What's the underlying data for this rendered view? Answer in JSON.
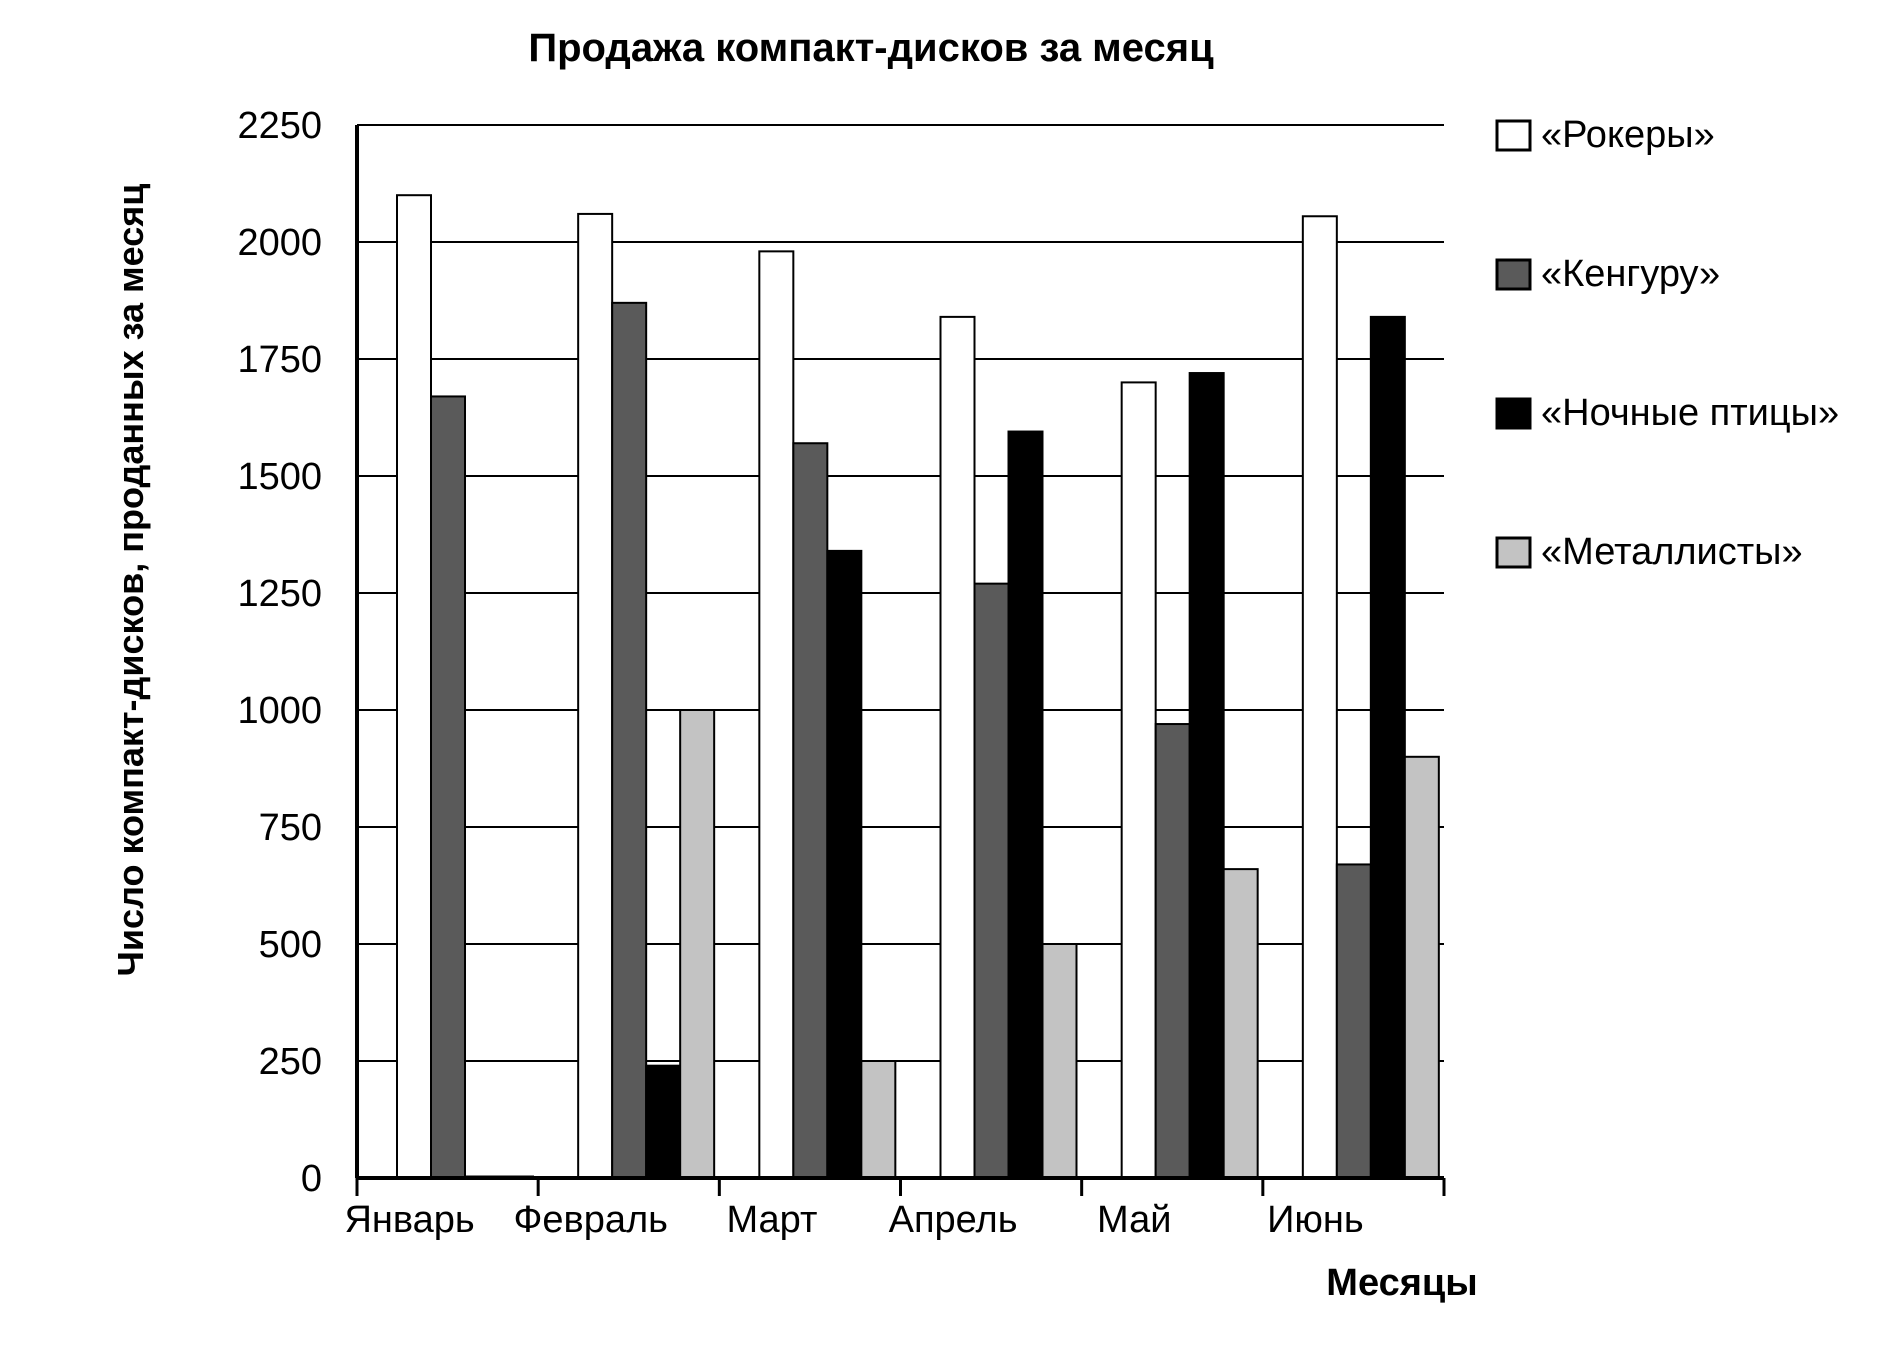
{
  "chart_data": {
    "type": "bar",
    "title": "Продажа компакт-дисков за месяц",
    "xlabel": "Месяцы",
    "ylabel": "Число компакт-дисков, проданных за месяц",
    "categories": [
      "Январь",
      "Февраль",
      "Март",
      "Апрель",
      "Май",
      "Июнь"
    ],
    "ylim": [
      0,
      2250
    ],
    "yticks": [
      "0",
      "250",
      "500",
      "750",
      "1000",
      "1250",
      "1500",
      "1750",
      "2000",
      "2250"
    ],
    "grid": true,
    "legend_position": "right",
    "series": [
      {
        "name": "«Рокеры»",
        "color": "#ffffff",
        "values": [
          2100,
          2060,
          1980,
          1840,
          1700,
          2055
        ]
      },
      {
        "name": "«Кенгуру»",
        "color": "#5a5a5a",
        "values": [
          1670,
          1870,
          1570,
          1270,
          970,
          670
        ]
      },
      {
        "name": "«Ночные птицы»",
        "color": "#000000",
        "values": [
          0,
          240,
          1340,
          1595,
          1720,
          1840
        ]
      },
      {
        "name": "«Металлисты»",
        "color": "#c3c3c3",
        "values": [
          0,
          1000,
          250,
          500,
          660,
          900
        ]
      }
    ]
  }
}
